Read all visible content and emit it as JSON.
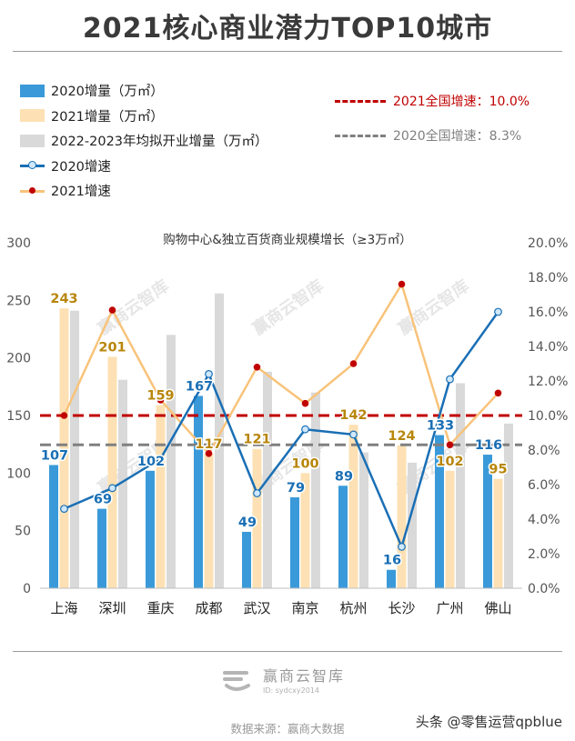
{
  "title": "2021核心商业潜力TOP10城市",
  "legend": {
    "items": [
      {
        "label": "2020增量（万㎡）",
        "color": "#3a9ad9",
        "kind": "bar"
      },
      {
        "label": "2021增量（万㎡）",
        "color": "#fde1b4",
        "kind": "bar"
      },
      {
        "label": "2022-2023年均拟开业增量（万㎡）",
        "color": "#d9d9d9",
        "kind": "bar"
      },
      {
        "label": "2020增速",
        "color": "#1a6fb5",
        "kind": "line-open"
      },
      {
        "label": "2021增速",
        "color": "#f8c37a",
        "kind": "line-red"
      }
    ]
  },
  "reference_lines": [
    {
      "label": "2021全国增速：10.0%",
      "value": 10.0,
      "color": "#c00000"
    },
    {
      "label": "2020全国增速：8.3%",
      "value": 8.3,
      "color": "#808080"
    }
  ],
  "watermark": "赢商云智库",
  "chart_data": {
    "type": "bar",
    "title": "购物中心&独立百货商业规模增长（≥3万㎡）",
    "categories": [
      "上海",
      "深圳",
      "重庆",
      "成都",
      "武汉",
      "南京",
      "杭州",
      "长沙",
      "广州",
      "佛山"
    ],
    "left_axis": {
      "ylim": [
        0,
        300
      ],
      "ticks": [
        "0",
        "50",
        "100",
        "150",
        "200",
        "250",
        "300"
      ]
    },
    "right_axis": {
      "ylim": [
        0,
        20
      ],
      "ticks": [
        "0.0%",
        "2.0%",
        "4.0%",
        "6.0%",
        "8.0%",
        "10.0%",
        "12.0%",
        "14.0%",
        "16.0%",
        "18.0%",
        "20.0%"
      ]
    },
    "series": [
      {
        "name": "2020增量（万㎡）",
        "type": "bar",
        "axis": "left",
        "values": [
          107,
          69,
          102,
          167,
          49,
          79,
          89,
          16,
          133,
          116
        ],
        "labels_shown": true
      },
      {
        "name": "2021增量（万㎡）",
        "type": "bar",
        "axis": "left",
        "values": [
          243,
          201,
          159,
          117,
          121,
          100,
          142,
          124,
          102,
          95
        ],
        "labels_shown": true
      },
      {
        "name": "2022-2023年均拟开业增量（万㎡）",
        "type": "bar",
        "axis": "left",
        "values": [
          241,
          181,
          220,
          256,
          188,
          170,
          118,
          109,
          178,
          143
        ],
        "labels_shown": false
      },
      {
        "name": "2020增速",
        "type": "line",
        "axis": "right",
        "values": [
          4.6,
          5.8,
          7.5,
          12.4,
          5.5,
          9.2,
          8.9,
          2.4,
          12.1,
          16.0
        ]
      },
      {
        "name": "2021增速",
        "type": "line",
        "axis": "right",
        "values": [
          10.0,
          16.1,
          10.9,
          7.8,
          12.8,
          10.7,
          13.0,
          17.6,
          8.3,
          11.3
        ]
      }
    ]
  },
  "footer": {
    "logo_name": "赢商云智库",
    "logo_id": "ID: sydcxy2014",
    "source": "数据来源：赢商大数据",
    "credit": "头条 @零售运营qpblue"
  }
}
